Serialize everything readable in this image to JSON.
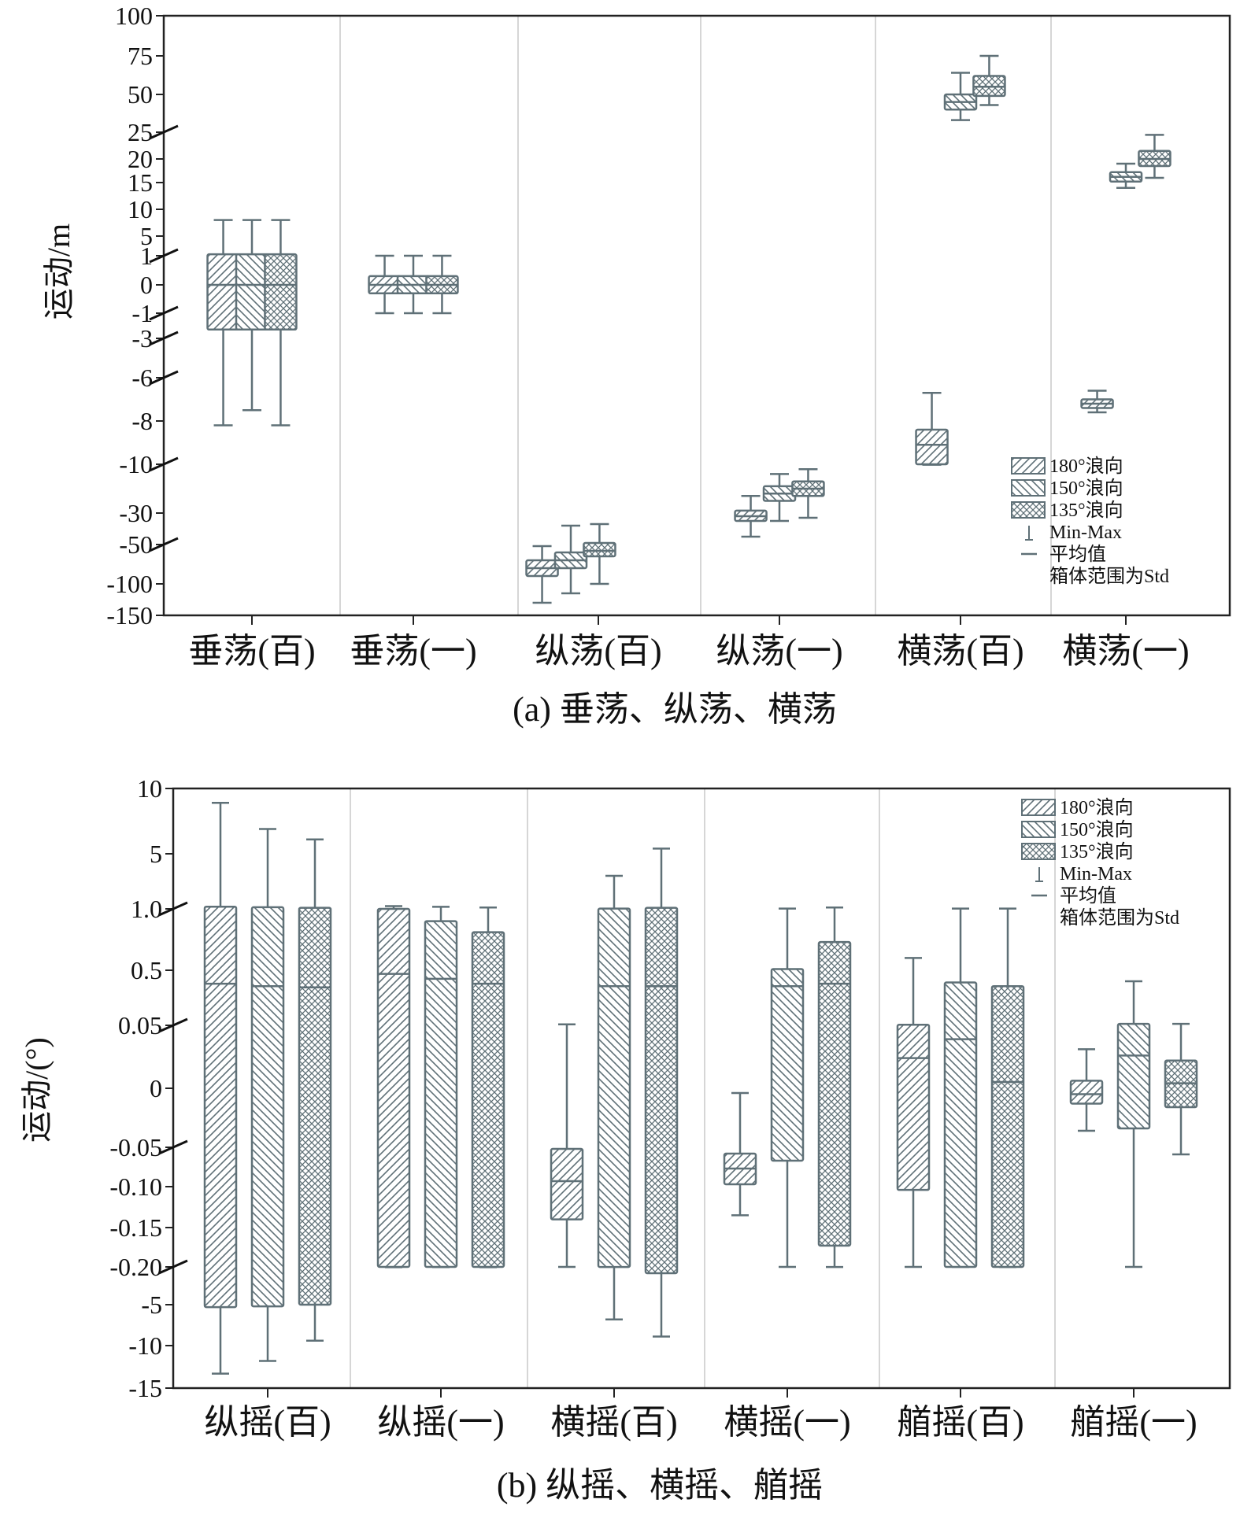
{
  "colors": {
    "box": "#5f7077",
    "grid": "#d6d6d6",
    "frame": "#222222"
  },
  "chart_data": [
    {
      "type": "box",
      "caption": "(a) 垂荡、纵荡、横荡",
      "ylabel": "运动/m",
      "yticks": [
        "100",
        "75",
        "50",
        "25",
        "20",
        "15",
        "10",
        "5",
        "1",
        "0",
        "-1",
        "-3",
        "-6",
        "-8",
        "-10",
        "-30",
        "-50",
        "-100",
        "-150"
      ],
      "axis_breaks": [
        "25",
        "1",
        "-1",
        "-3",
        "-6",
        "-10",
        "-50"
      ],
      "categories": [
        "垂荡(百)",
        "垂荡(一)",
        "纵荡(百)",
        "纵荡(一)",
        "横荡(百)",
        "横荡(一)"
      ],
      "series_names": [
        "180°浪向",
        "150°浪向",
        "135°浪向"
      ],
      "legend": {
        "items": [
          "180°浪向",
          "150°浪向",
          "135°浪向"
        ],
        "min_max": "Min-Max",
        "mean": "平均值",
        "note": "箱体范围为Std"
      },
      "groups": [
        {
          "category": "垂荡(百)",
          "boxes": [
            {
              "series": "180°浪向",
              "min": -8.2,
              "q1": -2.3,
              "mean": 0,
              "q3": 1.3,
              "max": 8
            },
            {
              "series": "150°浪向",
              "min": -7.5,
              "q1": -2.3,
              "mean": 0,
              "q3": 1.3,
              "max": 8
            },
            {
              "series": "135°浪向",
              "min": -8.2,
              "q1": -2.3,
              "mean": 0,
              "q3": 1.3,
              "max": 8
            }
          ]
        },
        {
          "category": "垂荡(一)",
          "boxes": [
            {
              "series": "180°浪向",
              "min": -1.0,
              "q1": -0.3,
              "mean": 0,
              "q3": 0.3,
              "max": 1.0
            },
            {
              "series": "150°浪向",
              "min": -1.0,
              "q1": -0.3,
              "mean": 0,
              "q3": 0.3,
              "max": 1.0
            },
            {
              "series": "135°浪向",
              "min": -1.0,
              "q1": -0.3,
              "mean": 0,
              "q3": 0.3,
              "max": 1.0
            }
          ]
        },
        {
          "category": "纵荡(百)",
          "boxes": [
            {
              "series": "180°浪向",
              "min": -130,
              "q1": -90,
              "mean": -80,
              "q3": -70,
              "max": -52
            },
            {
              "series": "150°浪向",
              "min": -115,
              "q1": -80,
              "mean": -70,
              "q3": -60,
              "max": -38
            },
            {
              "series": "135°浪向",
              "min": -100,
              "q1": -65,
              "mean": -58,
              "q3": -49,
              "max": -37
            }
          ]
        },
        {
          "category": "纵荡(一)",
          "boxes": [
            {
              "series": "180°浪向",
              "min": -45,
              "q1": -35,
              "mean": -32,
              "q3": -29,
              "max": -23
            },
            {
              "series": "150°浪向",
              "min": -35,
              "q1": -25,
              "mean": -22,
              "q3": -19,
              "max": -14
            },
            {
              "series": "135°浪向",
              "min": -33,
              "q1": -23,
              "mean": -20,
              "q3": -17,
              "max": -12
            }
          ]
        },
        {
          "category": "横荡(百)",
          "boxes": [
            {
              "series": "180°浪向",
              "min": -10.2,
              "q1": -10,
              "mean": -9.1,
              "q3": -8.4,
              "max": -6.7
            },
            {
              "series": "150°浪向",
              "min": 33,
              "q1": 40,
              "mean": 45,
              "q3": 50,
              "max": 64
            },
            {
              "series": "135°浪向",
              "min": 43,
              "q1": 49,
              "mean": 55,
              "q3": 62,
              "max": 75
            }
          ]
        },
        {
          "category": "横荡(一)",
          "boxes": [
            {
              "series": "180°浪向",
              "min": -7.6,
              "q1": -7.4,
              "mean": -7.2,
              "q3": -7.0,
              "max": -6.6
            },
            {
              "series": "150°浪向",
              "min": 14,
              "q1": 15.2,
              "mean": 16.2,
              "q3": 17.2,
              "max": 19
            },
            {
              "series": "135°浪向",
              "min": 16,
              "q1": 18.5,
              "mean": 20,
              "q3": 21.5,
              "max": 24.5
            }
          ]
        }
      ]
    },
    {
      "type": "box",
      "caption": "(b) 纵摇、横摇、艏摇",
      "ylabel": "运动/(°)",
      "yticks": [
        "10",
        "5",
        "1.0",
        "0.5",
        "0.05",
        "0",
        "-0.05",
        "-0.10",
        "-0.15",
        "-0.20",
        "-5",
        "-10",
        "-15"
      ],
      "axis_breaks": [
        "1.0",
        "0.05",
        "-0.05",
        "-0.20"
      ],
      "categories": [
        "纵摇(百)",
        "纵摇(一)",
        "横摇(百)",
        "横摇(一)",
        "艏摇(百)",
        "艏摇(一)"
      ],
      "series_names": [
        "180°浪向",
        "150°浪向",
        "135°浪向"
      ],
      "legend": {
        "items": [
          "180°浪向",
          "150°浪向",
          "135°浪向"
        ],
        "min_max": "Min-Max",
        "mean": "平均值",
        "note": "箱体范围为Std"
      },
      "groups": [
        {
          "category": "纵摇(百)",
          "boxes": [
            {
              "series": "180°浪向",
              "min": -13.3,
              "q1": -5.3,
              "mean": 0.39,
              "q3": 1.16,
              "max": 8.9
            },
            {
              "series": "150°浪向",
              "min": -11.8,
              "q1": -5.2,
              "mean": 0.37,
              "q3": 1.12,
              "max": 6.9
            },
            {
              "series": "135°浪向",
              "min": -9.4,
              "q1": -5.0,
              "mean": 0.36,
              "q3": 1.08,
              "max": 6.1
            }
          ]
        },
        {
          "category": "纵摇(一)",
          "boxes": [
            {
              "series": "180°浪向",
              "min": -0.24,
              "q1": -0.2,
              "mean": 0.47,
              "q3": 1.0,
              "max": 1.2
            },
            {
              "series": "150°浪向",
              "min": -0.23,
              "q1": -0.2,
              "mean": 0.43,
              "q3": 0.9,
              "max": 1.15
            },
            {
              "series": "135°浪向",
              "min": -0.235,
              "q1": -0.2,
              "mean": 0.39,
              "q3": 0.81,
              "max": 1.1
            }
          ]
        },
        {
          "category": "横摇(百)",
          "boxes": [
            {
              "series": "180°浪向",
              "min": -0.2,
              "q1": -0.14,
              "mean": -0.093,
              "q3": -0.052,
              "max": 0.058
            },
            {
              "series": "150°浪向",
              "min": -6.8,
              "q1": -0.21,
              "mean": 0.37,
              "q3": 1.02,
              "max": 3.4
            },
            {
              "series": "135°浪向",
              "min": -8.9,
              "q1": -1.0,
              "mean": 0.37,
              "q3": 1.08,
              "max": 5.4
            }
          ]
        },
        {
          "category": "横摇(一)",
          "boxes": [
            {
              "series": "180°浪向",
              "min": -0.135,
              "q1": -0.097,
              "mean": -0.077,
              "q3": -0.058,
              "max": -0.004
            },
            {
              "series": "150°浪向",
              "min": -0.205,
              "q1": -0.067,
              "mean": 0.37,
              "q3": 0.51,
              "max": 1.02
            },
            {
              "series": "135°浪向",
              "min": -0.215,
              "q1": -0.173,
              "mean": 0.39,
              "q3": 0.73,
              "max": 1.1
            }
          ]
        },
        {
          "category": "艏摇(百)",
          "boxes": [
            {
              "series": "180°浪向",
              "min": -0.203,
              "q1": -0.104,
              "mean": 0.024,
              "q3": 0.055,
              "max": 0.6
            },
            {
              "series": "150°浪向",
              "min": -0.206,
              "q1": -0.2,
              "mean": 0.039,
              "q3": 0.4,
              "max": 1.02
            },
            {
              "series": "135°浪向",
              "min": -0.207,
              "q1": -0.2,
              "mean": 0.005,
              "q3": 0.37,
              "max": 1.02
            }
          ]
        },
        {
          "category": "艏摇(一)",
          "boxes": [
            {
              "series": "180°浪向",
              "min": -0.036,
              "q1": -0.013,
              "mean": -0.005,
              "q3": 0.006,
              "max": 0.031
            },
            {
              "series": "150°浪向",
              "min": -0.2,
              "q1": -0.034,
              "mean": 0.026,
              "q3": 0.062,
              "max": 0.41
            },
            {
              "series": "135°浪向",
              "min": -0.059,
              "q1": -0.016,
              "mean": 0.004,
              "q3": 0.022,
              "max": 0.062
            }
          ]
        }
      ]
    }
  ]
}
